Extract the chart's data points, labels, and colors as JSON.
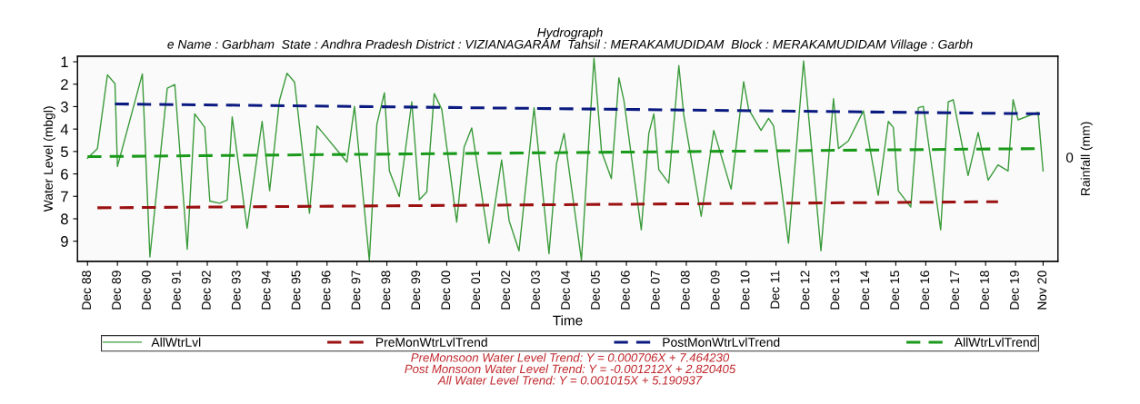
{
  "chart_data": {
    "type": "line",
    "title": "Hydrograph",
    "subtitle": "e Name : Garbham  State : Andhra Pradesh District : VIZIANAGARAM  Tahsil : MERAKAMUDIDAM  Block : MERAKAMUDIDAM Village : Garbh",
    "xlabel": "Time",
    "ylabel": "Water Level (mbgl)",
    "y2label": "Rainfall (mm)",
    "xlim": [
      "1988-08",
      "2021-05"
    ],
    "xticks": [
      {
        "value": "1988-12",
        "label": "Dec 88"
      },
      {
        "value": "1989-12",
        "label": "Dec 89"
      },
      {
        "value": "1990-12",
        "label": "Dec 90"
      },
      {
        "value": "1991-12",
        "label": "Dec 91"
      },
      {
        "value": "1992-12",
        "label": "Dec 92"
      },
      {
        "value": "1993-12",
        "label": "Dec 93"
      },
      {
        "value": "1994-12",
        "label": "Dec 94"
      },
      {
        "value": "1995-12",
        "label": "Dec 95"
      },
      {
        "value": "1996-12",
        "label": "Dec 96"
      },
      {
        "value": "1997-12",
        "label": "Dec 97"
      },
      {
        "value": "1998-12",
        "label": "Dec 98"
      },
      {
        "value": "1999-12",
        "label": "Dec 99"
      },
      {
        "value": "2000-12",
        "label": "Dec 00"
      },
      {
        "value": "2001-12",
        "label": "Dec 01"
      },
      {
        "value": "2002-12",
        "label": "Dec 02"
      },
      {
        "value": "2003-12",
        "label": "Dec 03"
      },
      {
        "value": "2004-12",
        "label": "Dec 04"
      },
      {
        "value": "2005-12",
        "label": "Dec 05"
      },
      {
        "value": "2006-12",
        "label": "Dec 06"
      },
      {
        "value": "2007-12",
        "label": "Dec 07"
      },
      {
        "value": "2008-12",
        "label": "Dec 08"
      },
      {
        "value": "2009-12",
        "label": "Dec 09"
      },
      {
        "value": "2010-12",
        "label": "Dec 10"
      },
      {
        "value": "2011-12",
        "label": "Dec 11"
      },
      {
        "value": "2012-12",
        "label": "Dec 12"
      },
      {
        "value": "2013-12",
        "label": "Dec 13"
      },
      {
        "value": "2014-12",
        "label": "Dec 14"
      },
      {
        "value": "2015-12",
        "label": "Dec 15"
      },
      {
        "value": "2016-12",
        "label": "Dec 16"
      },
      {
        "value": "2017-12",
        "label": "Dec 17"
      },
      {
        "value": "2018-12",
        "label": "Dec 18"
      },
      {
        "value": "2019-12",
        "label": "Dec 19"
      },
      {
        "value": "2020-11",
        "label": "Nov 20"
      }
    ],
    "ylim": [
      9.9,
      0.75
    ],
    "yticks": [
      1,
      2,
      3,
      4,
      5,
      6,
      7,
      8,
      9
    ],
    "grid": false,
    "legend": "bottom",
    "marker": "none",
    "series": [
      {
        "name": "AllWtrLvl",
        "color": "#3a9a3a",
        "line_style": "solid",
        "x": [
          "1988-12",
          "1989-04",
          "1989-08",
          "1989-11",
          "1989-12",
          "1990-10",
          "1991-01",
          "1991-08",
          "1991-11",
          "1992-04",
          "1992-07",
          "1992-11",
          "1993-01",
          "1993-05",
          "1993-08",
          "1993-10",
          "1994-04",
          "1994-10",
          "1995-01",
          "1995-05",
          "1995-08",
          "1995-11",
          "1996-05",
          "1996-08",
          "1996-10",
          "1997-08",
          "1997-11",
          "1998-05",
          "1998-08",
          "1998-11",
          "1999-01",
          "1999-05",
          "1999-10",
          "2000-01",
          "2000-04",
          "2000-07",
          "2000-10",
          "2001-04",
          "2001-07",
          "2001-10",
          "2002-05",
          "2002-10",
          "2003-01",
          "2003-05",
          "2003-11",
          "2004-05",
          "2004-08",
          "2004-11",
          "2005-06",
          "2005-11",
          "2006-02",
          "2006-06",
          "2006-09",
          "2006-11",
          "2007-06",
          "2007-09",
          "2007-11",
          "2008-01",
          "2008-05",
          "2008-09",
          "2008-11",
          "2009-06",
          "2009-11",
          "2010-06",
          "2010-11",
          "2011-01",
          "2011-06",
          "2011-09",
          "2011-11",
          "2012-05",
          "2012-11",
          "2013-06",
          "2013-11",
          "2014-01",
          "2014-05",
          "2014-11",
          "2015-05",
          "2015-09",
          "2015-11",
          "2016-01",
          "2016-06",
          "2016-09",
          "2016-11",
          "2017-06",
          "2017-09",
          "2017-11",
          "2018-05",
          "2018-09",
          "2019-01",
          "2019-05",
          "2019-09",
          "2019-11",
          "2020-01",
          "2020-09",
          "2020-11"
        ],
        "values": [
          5.3,
          4.87,
          1.58,
          1.98,
          5.67,
          1.54,
          9.7,
          2.18,
          2.02,
          9.36,
          3.32,
          3.93,
          7.21,
          7.31,
          7.17,
          3.46,
          8.42,
          3.66,
          6.75,
          2.72,
          1.51,
          1.91,
          7.75,
          3.86,
          4.13,
          5.47,
          2.99,
          9.85,
          3.79,
          2.38,
          5.87,
          7.01,
          2.79,
          7.15,
          6.81,
          2.42,
          3.12,
          8.15,
          4.8,
          3.95,
          9.09,
          5.38,
          8.09,
          9.43,
          3.05,
          9.56,
          5.54,
          4.19,
          9.85,
          0.84,
          5.0,
          6.21,
          1.71,
          2.72,
          8.49,
          4.19,
          3.32,
          5.81,
          6.41,
          1.17,
          3.39,
          7.89,
          4.06,
          6.68,
          1.89,
          3.12,
          4.06,
          3.52,
          3.86,
          9.09,
          0.97,
          9.43,
          2.65,
          4.87,
          4.53,
          3.19,
          6.95,
          3.66,
          3.93,
          6.75,
          7.48,
          3.05,
          2.99,
          8.49,
          2.79,
          2.69,
          6.07,
          4.15,
          6.28,
          5.6,
          5.87,
          2.69,
          3.59,
          3.25,
          5.87
        ]
      },
      {
        "name": "PreMonWtrLvlTrend",
        "color": "#9b1010",
        "line_style": "dashed",
        "x": [
          "1989-04",
          "2019-05"
        ],
        "values": [
          7.51,
          7.24
        ]
      },
      {
        "name": "PostMonWtrLvlTrend",
        "color": "#0a1a80",
        "line_style": "dashed",
        "x": [
          "1989-11",
          "2020-10"
        ],
        "values": [
          2.88,
          3.32
        ]
      },
      {
        "name": "AllWtrLvlTrend",
        "color": "#1a9a1a",
        "line_style": "dashed",
        "x": [
          "1988-12",
          "2020-11"
        ],
        "values": [
          5.23,
          4.87
        ]
      }
    ],
    "annotations": [
      "0",
      "PreMonsoon Water Level Trend: Y = 0.000706X + 7.464230",
      "Post Monsoon Water Level Trend: Y = -0.001212X + 2.820405",
      "All Water Level Trend: Y = 0.001015X + 5.190937"
    ]
  }
}
